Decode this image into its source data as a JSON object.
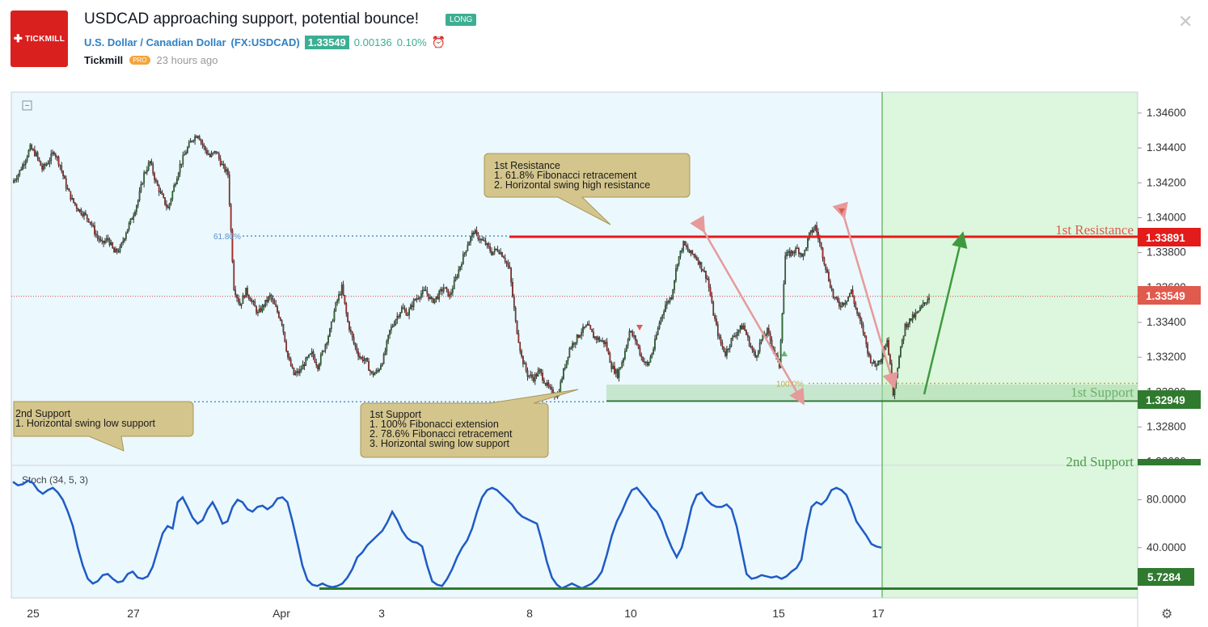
{
  "header": {
    "logo_text": "TICKMILL",
    "title": "USDCAD approaching support, potential bounce!",
    "badge": "LONG",
    "symbol_name": "U.S. Dollar / Canadian Dollar",
    "symbol_code": "(FX:USDCAD)",
    "last_price": "1.33549",
    "change": "0.00136",
    "change_pct": "0.10%",
    "author": "Tickmill",
    "author_badge": "PRO",
    "posted": "23 hours ago"
  },
  "chart_data": [
    {
      "type": "candlestick",
      "price_ticks": [
        "1.34600",
        "1.34400",
        "1.34200",
        "1.34000",
        "1.33800",
        "1.33600",
        "1.33400",
        "1.33200",
        "1.33000",
        "1.32800",
        "1.32600"
      ],
      "ylim": [
        1.3258,
        1.3472
      ],
      "x_ticks": [
        "25",
        "27",
        "Apr",
        "3",
        "8",
        "10",
        "15",
        "17"
      ],
      "price_labels": {
        "resistance": "1.33891",
        "current": "1.33549",
        "support": "1.32949"
      },
      "levels": {
        "resistance": 1.33891,
        "current": 1.33549,
        "support1": 1.32949,
        "fib_61_8": 1.33895,
        "support2_line": 1.32945,
        "fib_100": 1.3305
      },
      "fib_labels": {
        "fib_61_8": "61.80%",
        "fib_100": "100.0%"
      },
      "zone_labels": {
        "resistance": "1st Resistance",
        "support1": "1st Support",
        "support2": "2nd Support"
      },
      "annotations": [
        {
          "title": "1st Resistance",
          "lines": [
            "1. 61.8% Fibonacci retracement",
            "2. Horizontal swing high resistance"
          ]
        },
        {
          "title": "1st Support",
          "lines": [
            "1. 100% Fibonacci extension",
            "2. 78.6% Fibonacci retracement",
            "3. Horizontal swing low support"
          ]
        },
        {
          "title": "2nd Support",
          "lines": [
            "1. Horizontal swing low support"
          ]
        }
      ],
      "ohlc_path": [
        1.342,
        1.3425,
        1.3432,
        1.344,
        1.3436,
        1.3428,
        1.3432,
        1.3438,
        1.343,
        1.3418,
        1.341,
        1.3405,
        1.3402,
        1.3398,
        1.339,
        1.3385,
        1.3388,
        1.338,
        1.3382,
        1.3392,
        1.34,
        1.341,
        1.3425,
        1.3432,
        1.342,
        1.3412,
        1.3405,
        1.3418,
        1.343,
        1.3438,
        1.3445,
        1.3448,
        1.344,
        1.3435,
        1.3438,
        1.343,
        1.3425,
        1.336,
        1.335,
        1.3358,
        1.3352,
        1.3345,
        1.335,
        1.3355,
        1.3348,
        1.334,
        1.332,
        1.331,
        1.3312,
        1.3318,
        1.3322,
        1.3315,
        1.3325,
        1.3335,
        1.335,
        1.336,
        1.334,
        1.3328,
        1.332,
        1.3318,
        1.331,
        1.3312,
        1.332,
        1.3335,
        1.3342,
        1.3348,
        1.3345,
        1.3352,
        1.3356,
        1.3358,
        1.3352,
        1.3355,
        1.336,
        1.3355,
        1.3365,
        1.3375,
        1.3385,
        1.3392,
        1.3388,
        1.3385,
        1.338,
        1.3382,
        1.3378,
        1.337,
        1.334,
        1.332,
        1.331,
        1.3308,
        1.3312,
        1.3305,
        1.33,
        1.3298,
        1.3312,
        1.3325,
        1.333,
        1.3335,
        1.3338,
        1.3332,
        1.333,
        1.3328,
        1.3315,
        1.331,
        1.332,
        1.3335,
        1.333,
        1.332,
        1.3315,
        1.3325,
        1.334,
        1.335,
        1.3355,
        1.3375,
        1.3385,
        1.338,
        1.3378,
        1.3372,
        1.3365,
        1.3345,
        1.333,
        1.3322,
        1.333,
        1.3335,
        1.3338,
        1.3328,
        1.332,
        1.333,
        1.3335,
        1.3325,
        1.3315,
        1.3378,
        1.338,
        1.3382,
        1.3378,
        1.339,
        1.3395,
        1.3382,
        1.3368,
        1.3355,
        1.335,
        1.3352,
        1.3358,
        1.3345,
        1.3335,
        1.332,
        1.3315,
        1.332,
        1.333,
        1.33,
        1.332,
        1.3338,
        1.3342,
        1.3345,
        1.335,
        1.3355
      ]
    },
    {
      "type": "line",
      "title": "Stoch (34, 5, 3)",
      "ticks": [
        "80.0000",
        "40.0000"
      ],
      "ylim": [
        -2,
        108
      ],
      "current_label": "5.7284",
      "support_level": 5.7284,
      "values": [
        95,
        92,
        93,
        96,
        94,
        88,
        85,
        88,
        90,
        86,
        80,
        70,
        58,
        40,
        25,
        14,
        10,
        12,
        17,
        18,
        14,
        11,
        12,
        18,
        20,
        15,
        14,
        16,
        24,
        38,
        52,
        58,
        56,
        78,
        82,
        74,
        65,
        60,
        63,
        72,
        78,
        70,
        60,
        62,
        74,
        80,
        78,
        72,
        70,
        74,
        75,
        72,
        75,
        81,
        82,
        78,
        62,
        44,
        25,
        13,
        9,
        8,
        10,
        8,
        7,
        8,
        10,
        15,
        22,
        32,
        36,
        42,
        46,
        50,
        54,
        61,
        70,
        63,
        54,
        48,
        45,
        44,
        41,
        25,
        12,
        9,
        8,
        14,
        22,
        32,
        40,
        46,
        56,
        70,
        82,
        88,
        90,
        88,
        84,
        80,
        76,
        70,
        66,
        64,
        62,
        60,
        45,
        28,
        15,
        9,
        6,
        8,
        10,
        8,
        6,
        8,
        10,
        14,
        20,
        34,
        50,
        62,
        70,
        80,
        88,
        90,
        85,
        80,
        74,
        70,
        62,
        50,
        40,
        32,
        40,
        56,
        74,
        84,
        86,
        80,
        76,
        74,
        74,
        76,
        72,
        58,
        38,
        18,
        14,
        15,
        17,
        16,
        15,
        16,
        14,
        16,
        20,
        23,
        30,
        55,
        74,
        78,
        76,
        80,
        88,
        90,
        88,
        84,
        74,
        62,
        56,
        50,
        43,
        41,
        40
      ]
    }
  ]
}
